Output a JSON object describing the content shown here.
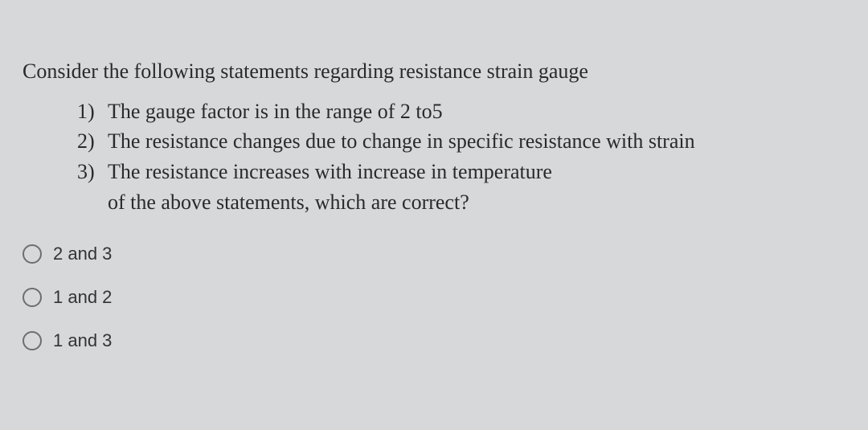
{
  "question": {
    "stem": "Consider the following statements regarding resistance strain gauge",
    "statements": [
      {
        "num": "1)",
        "text": "The gauge factor is in the range of 2 to5"
      },
      {
        "num": "2)",
        "text": "The resistance changes due to change in specific resistance with strain"
      },
      {
        "num": "3)",
        "text": "The resistance increases with increase in temperature"
      }
    ],
    "followup": "of the above statements, which are correct?"
  },
  "options": [
    {
      "label": "2 and 3"
    },
    {
      "label": "1 and 2"
    },
    {
      "label": "1 and 3"
    }
  ],
  "colors": {
    "background": "#d6d8da",
    "text": "#2a2a2a",
    "radio_border": "#6b6f72"
  },
  "typography": {
    "question_font": "Georgia, Times New Roman, serif",
    "question_fontsize": 26,
    "option_font": "Arial, Helvetica, sans-serif",
    "option_fontsize": 22
  }
}
